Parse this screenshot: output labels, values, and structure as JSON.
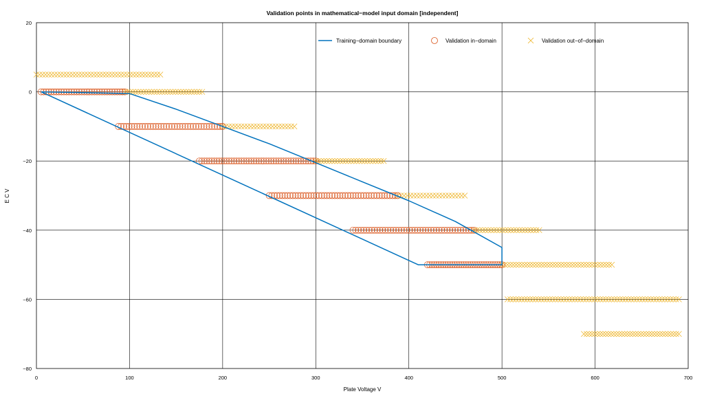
{
  "chart_data": {
    "type": "scatter",
    "title": "Validation points in mathematical−model input domain [independent]",
    "xlabel": "Plate Voltage V",
    "ylabel": "E C V",
    "xlim": [
      0,
      700
    ],
    "ylim": [
      -80,
      20
    ],
    "xticks": [
      0,
      100,
      200,
      300,
      400,
      500,
      600,
      700
    ],
    "yticks": [
      -80,
      -60,
      -40,
      -20,
      0,
      20
    ],
    "grid": true,
    "legend_position": "top-right",
    "boundary": {
      "name": "Training−domain boundary",
      "color": "#0072bd",
      "x": [
        5,
        100,
        150,
        200,
        250,
        300,
        350,
        400,
        450,
        500,
        500,
        410,
        5
      ],
      "y": [
        0,
        -0.5,
        -5,
        -10,
        -15,
        -20.5,
        -26,
        -31.5,
        -37.5,
        -45,
        -50,
        -50,
        0
      ]
    },
    "in_domain": {
      "name": "Validation in−domain",
      "color": "#d95319",
      "rows": [
        {
          "y": 0,
          "x_min": 5,
          "x_max": 95,
          "n": 34
        },
        {
          "y": -10,
          "x_min": 88,
          "x_max": 200,
          "n": 40
        },
        {
          "y": -20,
          "x_min": 175,
          "x_max": 300,
          "n": 48
        },
        {
          "y": -30,
          "x_min": 250,
          "x_max": 388,
          "n": 50
        },
        {
          "y": -40,
          "x_min": 340,
          "x_max": 470,
          "n": 46
        },
        {
          "y": -50,
          "x_min": 420,
          "x_max": 500,
          "n": 34
        }
      ]
    },
    "out_domain": {
      "name": "Validation out−of−domain",
      "color": "#edb120",
      "rows": [
        {
          "y": 5,
          "x_min": 0,
          "x_max": 133,
          "n": 42
        },
        {
          "y": 0,
          "x_min": 95,
          "x_max": 178,
          "n": 30
        },
        {
          "y": -10,
          "x_min": 200,
          "x_max": 277,
          "n": 24
        },
        {
          "y": -20,
          "x_min": 300,
          "x_max": 373,
          "n": 26
        },
        {
          "y": -30,
          "x_min": 388,
          "x_max": 460,
          "n": 22
        },
        {
          "y": -40,
          "x_min": 470,
          "x_max": 540,
          "n": 24
        },
        {
          "y": -50,
          "x_min": 500,
          "x_max": 618,
          "n": 40
        },
        {
          "y": -60,
          "x_min": 506,
          "x_max": 690,
          "n": 62
        },
        {
          "y": -70,
          "x_min": 588,
          "x_max": 690,
          "n": 36
        }
      ]
    }
  }
}
